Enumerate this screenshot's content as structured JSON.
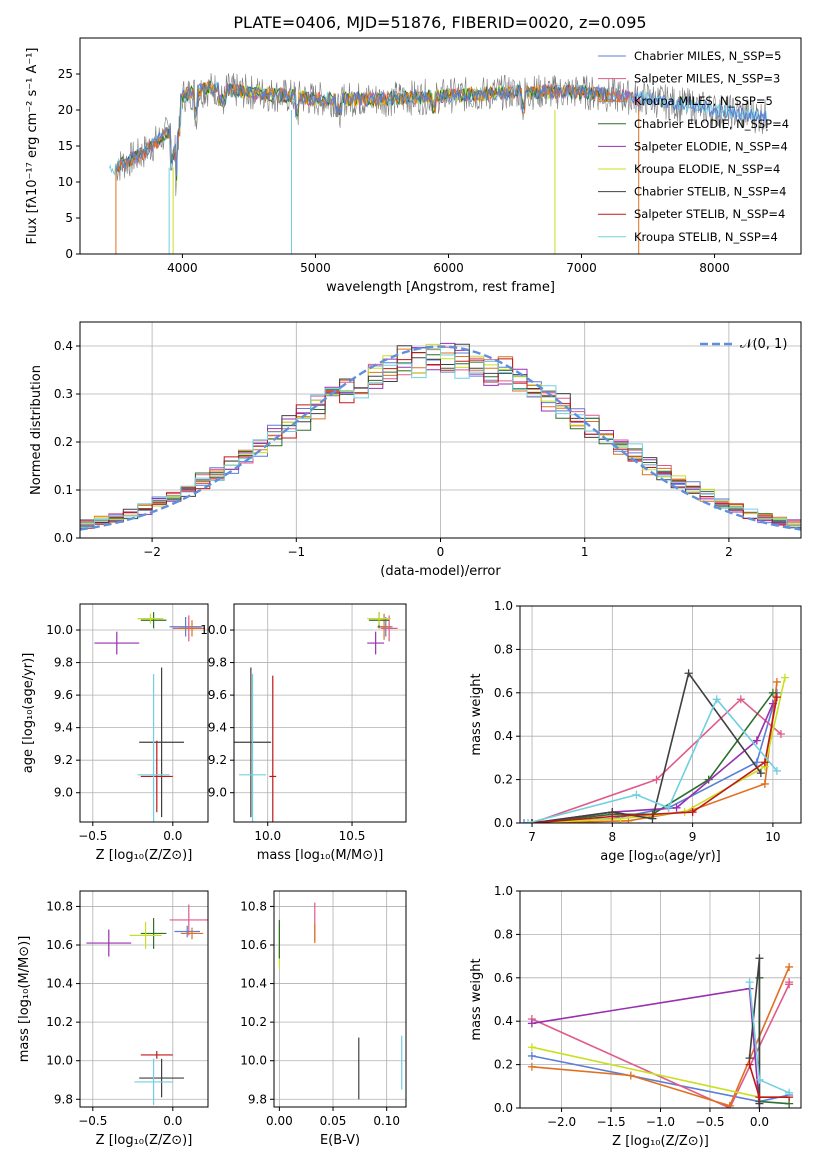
{
  "figure_title": "PLATE=0406, MJD=51876, FIBERID=0020, z=0.095",
  "series_colors": [
    "#5a7fd6",
    "#e05a8a",
    "#e07020",
    "#2e6e2e",
    "#9830b0",
    "#c8e020",
    "#404040",
    "#c01818",
    "#70d0e0"
  ],
  "chart_data": [
    {
      "type": "line",
      "id": "spectrum",
      "title": "PLATE=0406, MJD=51876, FIBERID=0020, z=0.095",
      "xlabel": "wavelength [Angstrom, rest frame]",
      "ylabel": "Flux [fλ10⁻¹⁷ erg cm⁻² s⁻¹ A⁻¹]",
      "xlim": [
        3230,
        8650
      ],
      "ylim": [
        0,
        30
      ],
      "xticks": [
        "4000",
        "5000",
        "6000",
        "7000",
        "8000"
      ],
      "yticks": [
        "0",
        "5",
        "10",
        "15",
        "20",
        "25"
      ],
      "data_anchor_points": {
        "x": [
          3500,
          3700,
          3900,
          4000,
          4200,
          4500,
          5000,
          5500,
          6000,
          6500,
          7000,
          7500,
          8000,
          8400
        ],
        "y": [
          12,
          14,
          17,
          22,
          23,
          22.5,
          21.5,
          21.5,
          22,
          22.5,
          22.5,
          21.5,
          20,
          19
        ]
      },
      "legend_position": "upper right",
      "legend": [
        "Chabrier MILES, N_SSP=5",
        "Salpeter MILES, N_SSP=3",
        "Kroupa MILES, N_SSP=5",
        "Chabrier ELODIE, N_SSP=4",
        "Salpeter ELODIE, N_SSP=4",
        "Kroupa ELODIE, N_SSP=4",
        "Chabrier STELIB, N_SSP=4",
        "Salpeter STELIB, N_SSP=4",
        "Kroupa STELIB, N_SSP=4"
      ],
      "grid": false
    },
    {
      "type": "histogram",
      "id": "residuals",
      "xlabel": "(data-model)/error",
      "ylabel": "Normed distribution",
      "xlim": [
        -2.5,
        2.5
      ],
      "ylim": [
        0,
        0.45
      ],
      "xticks": [
        "−2",
        "−1",
        "0",
        "1",
        "2"
      ],
      "yticks": [
        "0.0",
        "0.1",
        "0.2",
        "0.3",
        "0.4"
      ],
      "bin_width": 0.1,
      "reference_curve": "N(0,1)",
      "legend": [
        "𝒩(0, 1)"
      ],
      "legend_position": "upper right",
      "grid": true
    },
    {
      "type": "scatter",
      "id": "age_vs_Z",
      "xlabel": "Z [log₁₀(Z/Z⊙)]",
      "ylabel": "age  [log₁₀(age/yr)]",
      "xlim": [
        -0.58,
        0.22
      ],
      "ylim": [
        8.82,
        10.16
      ],
      "xticks": [
        "−0.5",
        "0.0"
      ],
      "yticks": [
        "9.0",
        "9.2",
        "9.4",
        "9.6",
        "9.8",
        "10.0"
      ],
      "points": [
        {
          "x": 0.08,
          "y": 10.02,
          "xerr": 0.1,
          "yerr": 0.06,
          "c": 0
        },
        {
          "x": 0.1,
          "y": 10.01,
          "xerr": 0.1,
          "yerr": 0.08,
          "c": 1
        },
        {
          "x": 0.12,
          "y": 10.01,
          "xerr": 0.08,
          "yerr": 0.05,
          "c": 2
        },
        {
          "x": -0.12,
          "y": 10.06,
          "xerr": 0.08,
          "yerr": 0.05,
          "c": 3
        },
        {
          "x": -0.35,
          "y": 9.92,
          "xerr": 0.14,
          "yerr": 0.07,
          "c": 4
        },
        {
          "x": -0.14,
          "y": 10.07,
          "xerr": 0.08,
          "yerr": 0.03,
          "c": 5
        },
        {
          "x": -0.07,
          "y": 9.31,
          "xerr": 0.14,
          "yerr": 0.46,
          "c": 6
        },
        {
          "x": -0.1,
          "y": 9.1,
          "xerr": 0.1,
          "yerr": 0.22,
          "c": 7
        },
        {
          "x": -0.12,
          "y": 9.11,
          "xerr": 0.1,
          "yerr": 0.62,
          "c": 8
        }
      ],
      "grid": true
    },
    {
      "type": "scatter",
      "id": "age_vs_mass",
      "xlabel": "mass [log₁₀(M/M⊙)]",
      "ylabel": "",
      "xlim": [
        9.8,
        10.82
      ],
      "ylim": [
        8.82,
        10.16
      ],
      "xticks": [
        "10.0",
        "10.5"
      ],
      "yticks": [
        "9.0",
        "9.2",
        "9.4",
        "9.6",
        "9.8",
        "10.0"
      ],
      "points": [
        {
          "x": 10.7,
          "y": 10.02,
          "xerr": 0.04,
          "yerr": 0.06,
          "c": 0
        },
        {
          "x": 10.72,
          "y": 10.01,
          "xerr": 0.05,
          "yerr": 0.08,
          "c": 1
        },
        {
          "x": 10.69,
          "y": 10.02,
          "xerr": 0.04,
          "yerr": 0.08,
          "c": 2
        },
        {
          "x": 10.66,
          "y": 10.06,
          "xerr": 0.06,
          "yerr": 0.05,
          "c": 3
        },
        {
          "x": 10.64,
          "y": 9.92,
          "xerr": 0.05,
          "yerr": 0.07,
          "c": 4
        },
        {
          "x": 10.66,
          "y": 10.07,
          "xerr": 0.07,
          "yerr": 0.04,
          "c": 5
        },
        {
          "x": 9.9,
          "y": 9.31,
          "xerr": 0.12,
          "yerr": 0.46,
          "c": 6
        },
        {
          "x": 10.03,
          "y": 9.1,
          "xerr": 0.02,
          "yerr": 0.62,
          "c": 7
        },
        {
          "x": 9.91,
          "y": 9.11,
          "xerr": 0.08,
          "yerr": 0.62,
          "c": 8
        }
      ],
      "grid": true
    },
    {
      "type": "line",
      "id": "massweight_vs_age",
      "xlabel": "age  [log₁₀(age/yr)]",
      "ylabel": "mass weight",
      "xlim": [
        6.85,
        10.35
      ],
      "ylim": [
        0,
        1
      ],
      "xticks": [
        "7",
        "8",
        "9",
        "10"
      ],
      "yticks": [
        "0.0",
        "0.2",
        "0.4",
        "0.6",
        "0.8",
        "1.0"
      ],
      "series": [
        {
          "c": 0,
          "x": [
            6.9,
            8.0,
            8.7,
            9.8,
            10.05
          ],
          "y": [
            0.0,
            0.02,
            0.07,
            0.28,
            0.6
          ]
        },
        {
          "c": 1,
          "x": [
            7.0,
            8.55,
            9.6,
            10.1
          ],
          "y": [
            0.0,
            0.2,
            0.57,
            0.41
          ]
        },
        {
          "c": 2,
          "x": [
            7.1,
            8.2,
            9.0,
            9.9,
            10.05
          ],
          "y": [
            0.0,
            0.01,
            0.06,
            0.18,
            0.65
          ]
        },
        {
          "c": 3,
          "x": [
            7.0,
            8.0,
            8.5,
            9.2,
            10.0
          ],
          "y": [
            0.0,
            0.04,
            0.04,
            0.2,
            0.6
          ]
        },
        {
          "c": 4,
          "x": [
            7.0,
            8.0,
            8.8,
            9.8,
            10.0
          ],
          "y": [
            0.0,
            0.05,
            0.07,
            0.38,
            0.55
          ]
        },
        {
          "c": 5,
          "x": [
            7.0,
            8.1,
            8.9,
            9.9,
            10.15
          ],
          "y": [
            0.0,
            0.02,
            0.05,
            0.26,
            0.67
          ]
        },
        {
          "c": 6,
          "x": [
            7.0,
            8.0,
            8.5,
            8.95,
            9.85
          ],
          "y": [
            0.0,
            0.05,
            0.02,
            0.69,
            0.23
          ]
        },
        {
          "c": 7,
          "x": [
            7.0,
            8.0,
            9.0,
            9.9,
            10.05
          ],
          "y": [
            0.0,
            0.03,
            0.05,
            0.28,
            0.58
          ]
        },
        {
          "c": 8,
          "x": [
            6.95,
            8.3,
            8.7,
            9.3,
            10.05
          ],
          "y": [
            0.0,
            0.13,
            0.07,
            0.57,
            0.24
          ]
        }
      ],
      "grid": true
    },
    {
      "type": "scatter",
      "id": "mass_vs_Z",
      "xlabel": "Z [log₁₀(Z/Z⊙)]",
      "ylabel": "mass [log₁₀(M/M⊙)]",
      "xlim": [
        -0.58,
        0.22
      ],
      "ylim": [
        9.76,
        10.88
      ],
      "xticks": [
        "−0.5",
        "0.0"
      ],
      "yticks": [
        "9.8",
        "10.0",
        "10.2",
        "10.4",
        "10.6",
        "10.8"
      ],
      "points": [
        {
          "x": 0.09,
          "y": 10.67,
          "xerr": 0.08,
          "yerr": 0.03,
          "c": 0
        },
        {
          "x": 0.1,
          "y": 10.73,
          "xerr": 0.12,
          "yerr": 0.08,
          "c": 1
        },
        {
          "x": 0.12,
          "y": 10.66,
          "xerr": 0.07,
          "yerr": 0.03,
          "c": 2
        },
        {
          "x": -0.12,
          "y": 10.66,
          "xerr": 0.08,
          "yerr": 0.08,
          "c": 3
        },
        {
          "x": -0.4,
          "y": 10.61,
          "xerr": 0.14,
          "yerr": 0.07,
          "c": 4
        },
        {
          "x": -0.17,
          "y": 10.65,
          "xerr": 0.1,
          "yerr": 0.07,
          "c": 5
        },
        {
          "x": -0.07,
          "y": 9.91,
          "xerr": 0.14,
          "yerr": 0.1,
          "c": 6
        },
        {
          "x": -0.1,
          "y": 10.03,
          "xerr": 0.1,
          "yerr": 0.02,
          "c": 7
        },
        {
          "x": -0.12,
          "y": 9.89,
          "xerr": 0.12,
          "yerr": 0.12,
          "c": 8
        }
      ],
      "grid": true
    },
    {
      "type": "scatter",
      "id": "mass_vs_ebv",
      "xlabel": "E(B-V)",
      "ylabel": "",
      "xlim": [
        -0.005,
        0.118
      ],
      "ylim": [
        9.76,
        10.88
      ],
      "xticks": [
        "0.00",
        "0.05",
        "0.10"
      ],
      "yticks": [
        "9.8",
        "10.0",
        "10.2",
        "10.4",
        "10.6",
        "10.8"
      ],
      "points": [
        {
          "x": 0.0,
          "y": 10.6,
          "yerr": 0.12,
          "c": 5
        },
        {
          "x": 0.0,
          "y": 10.63,
          "yerr": 0.1,
          "c": 3
        },
        {
          "x": 0.033,
          "y": 10.72,
          "yerr": 0.1,
          "c": 1
        },
        {
          "x": 0.033,
          "y": 10.66,
          "yerr": 0.05,
          "c": 2
        },
        {
          "x": 0.074,
          "y": 9.96,
          "yerr": 0.16,
          "c": 6
        },
        {
          "x": 0.114,
          "y": 9.99,
          "yerr": 0.14,
          "c": 8
        }
      ],
      "grid": true
    },
    {
      "type": "line",
      "id": "massweight_vs_Z",
      "xlabel": "Z [log₁₀(Z/Z⊙)]",
      "ylabel": "mass weight",
      "xlim": [
        -2.42,
        0.42
      ],
      "ylim": [
        0,
        1
      ],
      "xticks": [
        "−2.0",
        "−1.5",
        "−1.0",
        "−0.5",
        "0.0"
      ],
      "yticks": [
        "0.0",
        "0.2",
        "0.4",
        "0.6",
        "0.8",
        "1.0"
      ],
      "series": [
        {
          "c": 0,
          "x": [
            -2.3,
            0.0,
            0.3
          ],
          "y": [
            0.24,
            0.03,
            0.06
          ]
        },
        {
          "c": 1,
          "x": [
            -2.3,
            -0.3,
            0.3,
            0.3
          ],
          "y": [
            0.41,
            0.0,
            0.57,
            0.58
          ]
        },
        {
          "c": 2,
          "x": [
            -2.3,
            -1.3,
            -0.3,
            0.3
          ],
          "y": [
            0.19,
            0.15,
            0.01,
            0.65
          ]
        },
        {
          "c": 3,
          "x": [
            0.0,
            0.0,
            0.3
          ],
          "y": [
            0.6,
            0.03,
            0.02
          ]
        },
        {
          "c": 4,
          "x": [
            -2.3,
            -0.1,
            0.0
          ],
          "y": [
            0.39,
            0.55,
            0.0
          ]
        },
        {
          "c": 5,
          "x": [
            -2.3,
            0.0,
            0.3
          ],
          "y": [
            0.28,
            0.05,
            0.05
          ]
        },
        {
          "c": 6,
          "x": [
            -0.1,
            0.0,
            0.0
          ],
          "y": [
            0.23,
            0.69,
            0.02
          ]
        },
        {
          "c": 7,
          "x": [
            -0.1,
            0.0,
            0.3
          ],
          "y": [
            0.2,
            0.05,
            0.05
          ]
        },
        {
          "c": 8,
          "x": [
            -0.1,
            0.0,
            0.3
          ],
          "y": [
            0.58,
            0.13,
            0.07
          ]
        }
      ],
      "grid": true
    }
  ]
}
